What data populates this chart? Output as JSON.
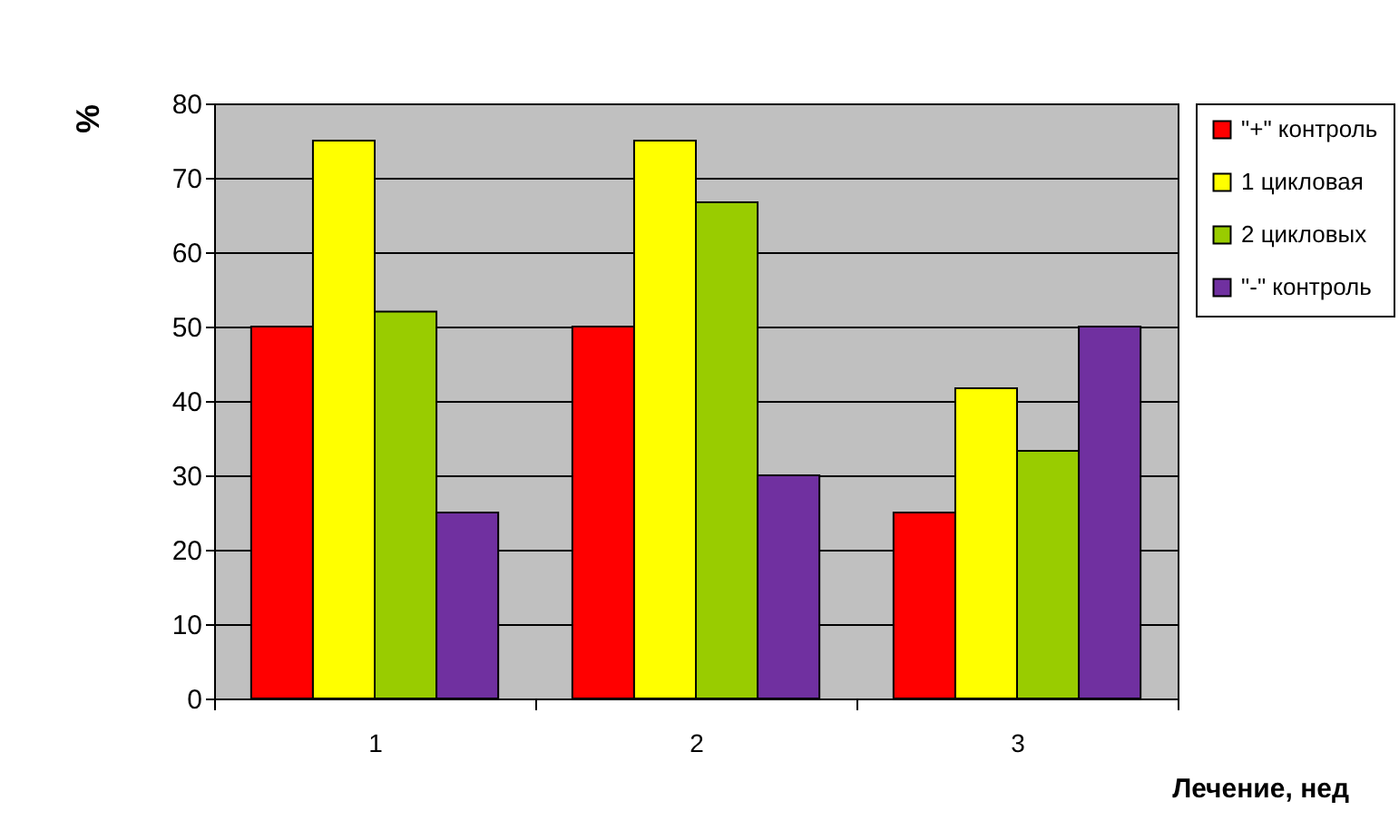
{
  "chart_data": {
    "type": "bar",
    "xlabel": "Лечение, нед",
    "ylabel": "%",
    "categories": [
      "1",
      "2",
      "3"
    ],
    "series": [
      {
        "name": "\"+\" контроль",
        "color": "#ff0000",
        "values": [
          50,
          50,
          25
        ]
      },
      {
        "name": "1 цикловая",
        "color": "#ffff00",
        "values": [
          75,
          75,
          41.7
        ]
      },
      {
        "name": "2 цикловых",
        "color": "#99cc00",
        "values": [
          52,
          66.7,
          33.3
        ]
      },
      {
        "name": "\"-\" контроль",
        "color": "#7030a0",
        "values": [
          25,
          30,
          50
        ]
      }
    ],
    "ylim": [
      0,
      80
    ],
    "yticks": [
      0,
      10,
      20,
      30,
      40,
      50,
      60,
      70,
      80
    ],
    "grid": "y",
    "legend": "right"
  }
}
